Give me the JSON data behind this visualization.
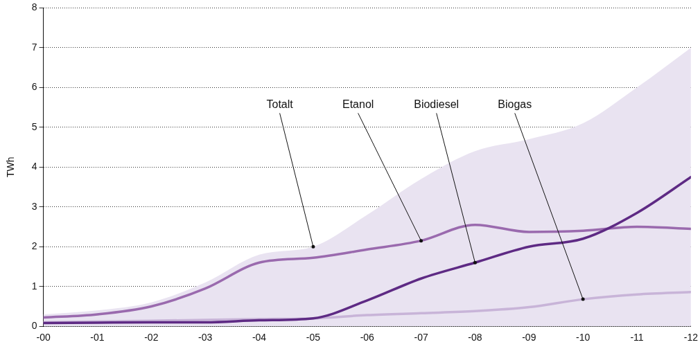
{
  "chart_data": {
    "type": "line",
    "ylabel": "TWh",
    "categories": [
      "-00",
      "-01",
      "-02",
      "-03",
      "-04",
      "-05",
      "-06",
      "-07",
      "-08",
      "-09",
      "-10",
      "-11",
      "-12"
    ],
    "ylim": [
      0,
      8
    ],
    "yticks": [
      0,
      1,
      2,
      3,
      4,
      5,
      6,
      7,
      8
    ],
    "grid": "y",
    "legend": false,
    "marker": "none",
    "line_style": "solid",
    "series": [
      {
        "type": "area",
        "color": "#e9e3f1",
        "values": [
          0.3,
          0.4,
          0.6,
          1.1,
          1.8,
          2.0,
          2.8,
          3.7,
          4.4,
          4.7,
          5.1,
          6.0,
          7.0
        ]
      },
      {
        "color": "#c8b4d8",
        "values": [
          0.1,
          0.12,
          0.14,
          0.16,
          0.18,
          0.2,
          0.28,
          0.33,
          0.38,
          0.48,
          0.68,
          0.8,
          0.86
        ]
      },
      {
        "color": "#9a6aae",
        "values": [
          0.22,
          0.3,
          0.5,
          0.95,
          1.6,
          1.72,
          1.93,
          2.15,
          2.55,
          2.37,
          2.4,
          2.5,
          2.45
        ]
      },
      {
        "color": "#5e2a84",
        "values": [
          0.08,
          0.09,
          0.1,
          0.1,
          0.15,
          0.2,
          0.65,
          1.2,
          1.6,
          2.0,
          2.2,
          2.85,
          3.75
        ]
      }
    ],
    "annotations": [
      {
        "text": "Totalt",
        "x": "-05",
        "y": 2.0
      },
      {
        "text": "Etanol",
        "x": "-07",
        "y": 2.15
      },
      {
        "text": "Biodiesel",
        "x": "-08",
        "y": 1.6
      },
      {
        "text": "Biogas",
        "x": "-10",
        "y": 0.68
      }
    ]
  }
}
